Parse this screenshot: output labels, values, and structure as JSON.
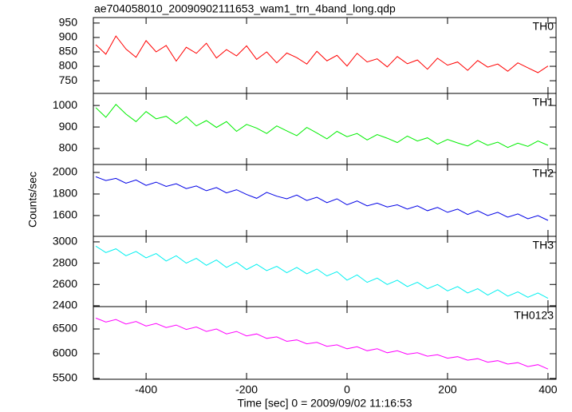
{
  "title": "ae704058010_20090902111653_wam1_trn_4band_long.qdp",
  "xlabel": "Time [sec] 0 = 2009/09/02 11:16:53",
  "ylabel": "Counts/sec",
  "chart_data": [
    {
      "type": "line",
      "xlim": [
        -505,
        416
      ],
      "xticks": [
        -400,
        -200,
        0,
        200,
        400
      ],
      "ylim": [
        706,
        969
      ],
      "yticks": [
        750,
        800,
        850,
        900,
        950
      ],
      "x": [
        -500,
        -480,
        -460,
        -440,
        -420,
        -400,
        -380,
        -360,
        -340,
        -320,
        -300,
        -280,
        -260,
        -240,
        -220,
        -200,
        -180,
        -160,
        -140,
        -120,
        -100,
        -80,
        -60,
        -40,
        -20,
        0,
        20,
        40,
        60,
        80,
        100,
        120,
        140,
        160,
        180,
        200,
        220,
        240,
        260,
        280,
        300,
        320,
        340,
        360,
        380,
        400
      ],
      "series": [
        {
          "name": "TH0",
          "color": "#ff0000",
          "values": [
            875,
            842,
            905,
            860,
            831,
            889,
            850,
            872,
            818,
            866,
            845,
            880,
            829,
            858,
            836,
            871,
            824,
            850,
            812,
            846,
            830,
            808,
            852,
            819,
            838,
            801,
            845,
            815,
            826,
            798,
            834,
            809,
            822,
            790,
            828,
            804,
            815,
            786,
            820,
            797,
            808,
            783,
            812,
            795,
            778,
            801
          ]
        }
      ]
    },
    {
      "type": "line",
      "xlim": [
        -505,
        416
      ],
      "xticks": [
        -400,
        -200,
        0,
        200,
        400
      ],
      "ylim": [
        726,
        1056
      ],
      "yticks": [
        800,
        900,
        1000
      ],
      "x": [
        -500,
        -480,
        -460,
        -440,
        -420,
        -400,
        -380,
        -360,
        -340,
        -320,
        -300,
        -280,
        -260,
        -240,
        -220,
        -200,
        -180,
        -160,
        -140,
        -120,
        -100,
        -80,
        -60,
        -40,
        -20,
        0,
        20,
        40,
        60,
        80,
        100,
        120,
        140,
        160,
        180,
        200,
        220,
        240,
        260,
        280,
        300,
        320,
        340,
        360,
        380,
        400
      ],
      "series": [
        {
          "name": "TH1",
          "color": "#00ee00",
          "values": [
            990,
            945,
            1005,
            960,
            925,
            972,
            938,
            950,
            915,
            948,
            905,
            930,
            898,
            925,
            880,
            912,
            895,
            870,
            905,
            882,
            860,
            898,
            872,
            845,
            880,
            855,
            870,
            840,
            865,
            848,
            828,
            858,
            835,
            850,
            820,
            842,
            826,
            812,
            838,
            815,
            830,
            805,
            825,
            810,
            835,
            815
          ]
        }
      ]
    },
    {
      "type": "line",
      "xlim": [
        -505,
        416
      ],
      "xticks": [
        -400,
        -200,
        0,
        200,
        400
      ],
      "ylim": [
        1407,
        2074
      ],
      "yticks": [
        1600,
        1800,
        2000
      ],
      "x": [
        -500,
        -480,
        -460,
        -440,
        -420,
        -400,
        -380,
        -360,
        -340,
        -320,
        -300,
        -280,
        -260,
        -240,
        -220,
        -200,
        -180,
        -160,
        -140,
        -120,
        -100,
        -80,
        -60,
        -40,
        -20,
        0,
        20,
        40,
        60,
        80,
        100,
        120,
        140,
        160,
        180,
        200,
        220,
        240,
        260,
        280,
        300,
        320,
        340,
        360,
        380,
        400
      ],
      "series": [
        {
          "name": "TH2",
          "color": "#0000e6",
          "values": [
            1960,
            1925,
            1945,
            1900,
            1930,
            1880,
            1910,
            1870,
            1895,
            1850,
            1875,
            1830,
            1860,
            1810,
            1840,
            1795,
            1760,
            1815,
            1780,
            1755,
            1790,
            1740,
            1770,
            1720,
            1755,
            1700,
            1735,
            1690,
            1715,
            1680,
            1700,
            1660,
            1690,
            1645,
            1675,
            1630,
            1660,
            1610,
            1645,
            1600,
            1630,
            1585,
            1615,
            1570,
            1600,
            1555
          ]
        }
      ]
    },
    {
      "type": "line",
      "xlim": [
        -505,
        416
      ],
      "xticks": [
        -400,
        -200,
        0,
        200,
        400
      ],
      "ylim": [
        2392,
        3052
      ],
      "yticks": [
        2400,
        2600,
        2800,
        3000
      ],
      "x": [
        -500,
        -480,
        -460,
        -440,
        -420,
        -400,
        -380,
        -360,
        -340,
        -320,
        -300,
        -280,
        -260,
        -240,
        -220,
        -200,
        -180,
        -160,
        -140,
        -120,
        -100,
        -80,
        -60,
        -40,
        -20,
        0,
        20,
        40,
        60,
        80,
        100,
        120,
        140,
        160,
        180,
        200,
        220,
        240,
        260,
        280,
        300,
        320,
        340,
        360,
        380,
        400
      ],
      "series": [
        {
          "name": "TH3",
          "color": "#00f0f0",
          "values": [
            2960,
            2900,
            2935,
            2870,
            2910,
            2850,
            2890,
            2820,
            2870,
            2800,
            2845,
            2780,
            2830,
            2760,
            2810,
            2740,
            2790,
            2730,
            2770,
            2710,
            2760,
            2700,
            2745,
            2680,
            2720,
            2640,
            2690,
            2620,
            2660,
            2600,
            2640,
            2580,
            2620,
            2560,
            2600,
            2540,
            2580,
            2520,
            2560,
            2500,
            2550,
            2490,
            2530,
            2480,
            2520,
            2470
          ]
        }
      ]
    },
    {
      "type": "line",
      "xlim": [
        -505,
        416
      ],
      "xticks": [
        -400,
        -200,
        0,
        200,
        400
      ],
      "ylim": [
        5484,
        6952
      ],
      "yticks": [
        5500,
        6000,
        6500
      ],
      "x": [
        -500,
        -480,
        -460,
        -440,
        -420,
        -400,
        -380,
        -360,
        -340,
        -320,
        -300,
        -280,
        -260,
        -240,
        -220,
        -200,
        -180,
        -160,
        -140,
        -120,
        -100,
        -80,
        -60,
        -40,
        -20,
        0,
        20,
        40,
        60,
        80,
        100,
        120,
        140,
        160,
        180,
        200,
        220,
        240,
        260,
        280,
        300,
        320,
        340,
        360,
        380,
        400
      ],
      "series": [
        {
          "name": "TH0123",
          "color": "#ff00ff",
          "values": [
            6720,
            6640,
            6690,
            6600,
            6650,
            6560,
            6610,
            6530,
            6580,
            6490,
            6540,
            6450,
            6500,
            6400,
            6450,
            6360,
            6400,
            6310,
            6340,
            6250,
            6280,
            6200,
            6230,
            6150,
            6180,
            6100,
            6140,
            6060,
            6100,
            6020,
            6060,
            5990,
            6020,
            5950,
            5980,
            5910,
            5940,
            5870,
            5900,
            5830,
            5860,
            5790,
            5820,
            5740,
            5780,
            5690
          ]
        }
      ]
    }
  ]
}
